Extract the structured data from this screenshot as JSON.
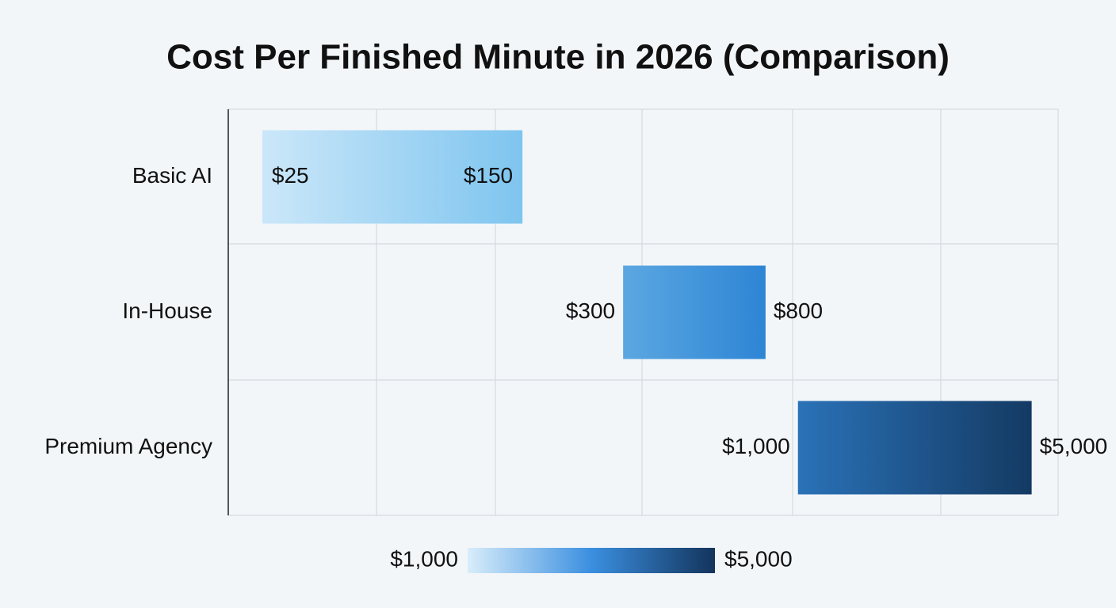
{
  "chart_data": {
    "type": "range-bar",
    "orientation": "horizontal",
    "title": "Cost Per Finished Minute in 2026 (Comparison)",
    "categories": [
      "Basic AI",
      "In-House",
      "Premium Agency"
    ],
    "values": [
      [
        25,
        150
      ],
      [
        300,
        800
      ],
      [
        1000,
        5000
      ]
    ],
    "value_labels": [
      [
        "$25",
        "$150"
      ],
      [
        "$300",
        "$800"
      ],
      [
        "$1,000",
        "$5,000"
      ]
    ],
    "colors": [
      [
        "#cbe7f9",
        "#7ec5ef"
      ],
      [
        "#5ba7e1",
        "#2e85d5"
      ],
      [
        "#2a72b8",
        "#143a63"
      ]
    ],
    "xlim": [
      20,
      6000
    ],
    "log_scale": true,
    "colorbar": {
      "ticks": [
        {
          "value": 1000,
          "label": "$1,000"
        },
        {
          "value": 5000,
          "label": "$5,000"
        }
      ],
      "colors": [
        "#d8edfa",
        "#3b8fe0",
        "#13345c"
      ]
    }
  }
}
